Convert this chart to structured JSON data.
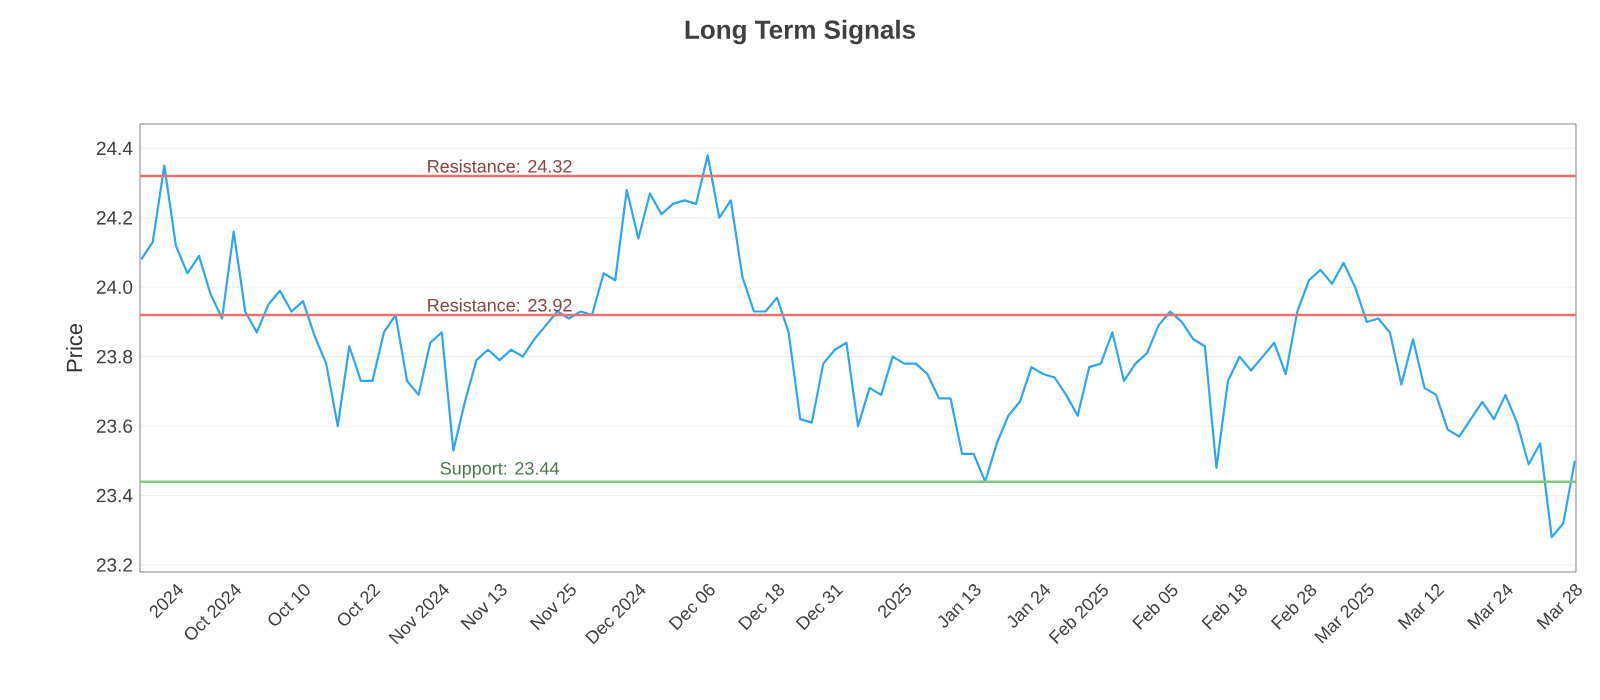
{
  "chart_data": {
    "type": "line",
    "title": "Long Term Signals",
    "ylabel": "Price",
    "categories": [
      null,
      null,
      null,
      "2024",
      null,
      null,
      null,
      null,
      "Oct 2024",
      null,
      null,
      null,
      null,
      null,
      "Oct 10",
      null,
      null,
      null,
      null,
      null,
      "Oct 22",
      null,
      null,
      null,
      null,
      null,
      "Nov 2024",
      null,
      null,
      null,
      null,
      "Nov 13",
      null,
      null,
      null,
      null,
      null,
      "Nov 25",
      null,
      null,
      null,
      null,
      null,
      "Dec 2024",
      null,
      null,
      null,
      null,
      null,
      "Dec 06",
      null,
      null,
      null,
      null,
      null,
      "Dec 18",
      null,
      null,
      null,
      null,
      "Dec 31",
      null,
      null,
      null,
      null,
      null,
      "2025",
      null,
      null,
      null,
      null,
      null,
      "Jan 13",
      null,
      null,
      null,
      null,
      null,
      "Jan 24",
      null,
      null,
      null,
      null,
      "Feb 2025",
      null,
      null,
      null,
      null,
      null,
      "Feb 05",
      null,
      null,
      null,
      null,
      null,
      "Feb 18",
      null,
      null,
      null,
      null,
      null,
      "Feb 28",
      null,
      null,
      null,
      null,
      "Mar 2025",
      null,
      null,
      null,
      null,
      null,
      "Mar 12",
      null,
      null,
      null,
      null,
      null,
      "Mar 24",
      null,
      null,
      null,
      null,
      null,
      "Mar 28"
    ],
    "values": [
      24.08,
      24.13,
      24.35,
      24.12,
      24.04,
      24.09,
      23.98,
      23.91,
      24.16,
      23.93,
      23.87,
      23.95,
      23.99,
      23.93,
      23.96,
      23.86,
      23.78,
      23.6,
      23.83,
      23.73,
      23.73,
      23.87,
      23.92,
      23.73,
      23.69,
      23.84,
      23.87,
      23.53,
      23.67,
      23.79,
      23.82,
      23.79,
      23.82,
      23.8,
      23.85,
      23.89,
      23.93,
      23.91,
      23.93,
      23.92,
      24.04,
      24.02,
      24.28,
      24.14,
      24.27,
      24.21,
      24.24,
      24.25,
      24.24,
      24.38,
      24.2,
      24.25,
      24.03,
      23.93,
      23.93,
      23.97,
      23.87,
      23.62,
      23.61,
      23.78,
      23.82,
      23.84,
      23.6,
      23.71,
      23.69,
      23.8,
      23.78,
      23.78,
      23.75,
      23.68,
      23.68,
      23.52,
      23.52,
      23.44,
      23.55,
      23.63,
      23.67,
      23.77,
      23.75,
      23.74,
      23.69,
      23.63,
      23.77,
      23.78,
      23.87,
      23.73,
      23.78,
      23.81,
      23.89,
      23.93,
      23.9,
      23.85,
      23.83,
      23.48,
      23.73,
      23.8,
      23.76,
      23.8,
      23.84,
      23.75,
      23.93,
      24.02,
      24.05,
      24.01,
      24.07,
      24.0,
      23.9,
      23.91,
      23.87,
      23.72,
      23.85,
      23.71,
      23.69,
      23.59,
      23.57,
      23.62,
      23.67,
      23.62,
      23.69,
      23.61,
      23.49,
      23.55,
      23.28,
      23.32,
      23.5
    ],
    "color": "#2ea7f0",
    "ylim": [
      23.18,
      24.47
    ],
    "yticks": [
      23.2,
      23.4,
      23.6,
      23.8,
      {
        "value": 24,
        "label": "24.0"
      },
      24.2,
      24.4
    ],
    "grid": "y",
    "ref_lines": [
      {
        "axis": "y",
        "value": 24.32,
        "label": "Resistance: 24.32",
        "color": "#e57373"
      },
      {
        "axis": "y",
        "value": 23.92,
        "label": "Resistance: 23.92",
        "color": "#e57373"
      },
      {
        "axis": "y",
        "value": 23.44,
        "label": "Support: 23.44",
        "color": "#81c784"
      }
    ]
  }
}
